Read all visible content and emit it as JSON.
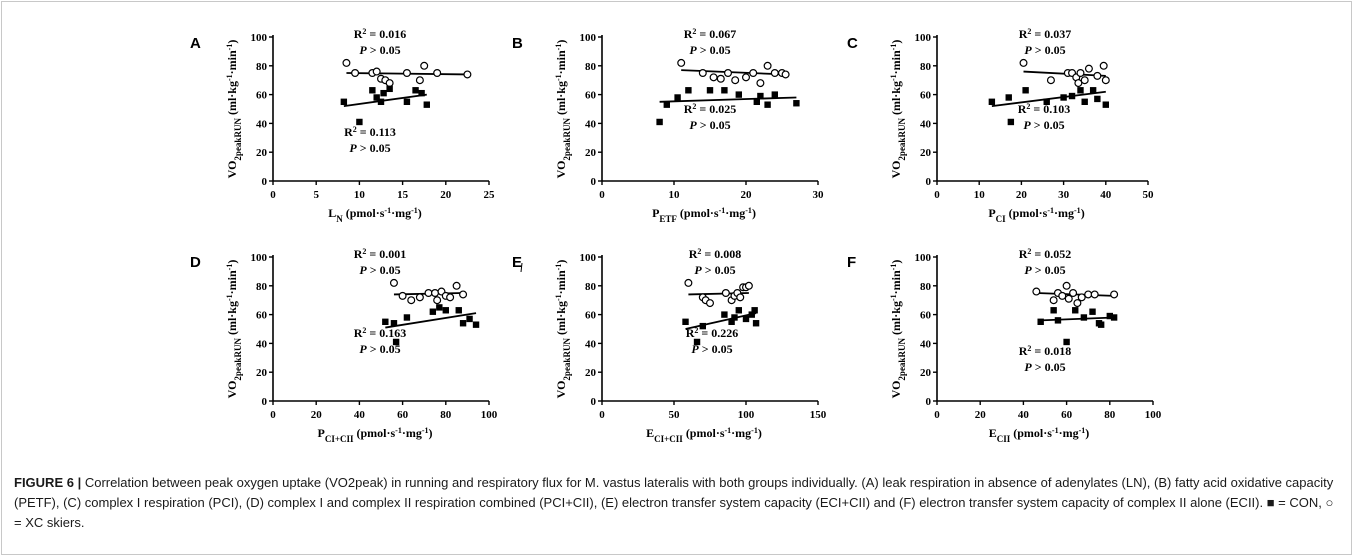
{
  "caption": {
    "figure_label": "FIGURE 6 |",
    "text": "Correlation between peak oxygen uptake (VO2peak) in running and respiratory flux for M. vastus lateralis with both groups individually. (A) leak respiration in absence of adenylates (LN), (B) fatty acid oxidative capacity (PETF), (C) complex I respiration (PCI), (D) complex I and complex II respiration combined (PCI+CII), (E) electron transfer system capacity (ECI+CII) and (F) electron transfer system capacity of complex II alone (ECII). ■ = CON, ○ = XC skiers."
  },
  "chart_data": [
    {
      "panel": "A",
      "type": "scatter",
      "xlabel": "LN (pmol·s-1·mg-1)",
      "xlabel_main": "L",
      "xlabel_sub": "N",
      "xlabel_rest": " (pmol·s-1·mg-1)",
      "ylabel": "VO2peakRUN (ml·kg-1·min-1)",
      "xlim": [
        0,
        25
      ],
      "xticks": [
        0,
        5,
        10,
        15,
        20,
        25
      ],
      "ylim": [
        0,
        100
      ],
      "yticks": [
        0,
        20,
        40,
        60,
        80,
        100
      ],
      "series": [
        {
          "name": "XC skiers",
          "marker": "circle",
          "points": [
            [
              8.5,
              82
            ],
            [
              9.5,
              75
            ],
            [
              11.5,
              75
            ],
            [
              12,
              76
            ],
            [
              12.5,
              71
            ],
            [
              13,
              70
            ],
            [
              13.5,
              68
            ],
            [
              15.5,
              75
            ],
            [
              17,
              70
            ],
            [
              17.5,
              80
            ],
            [
              19,
              75
            ],
            [
              22.5,
              74
            ]
          ],
          "fit": [
            [
              8.5,
              75
            ],
            [
              22.5,
              74
            ]
          ],
          "r2": "R2 = 0.016",
          "p": "P > 0.05"
        },
        {
          "name": "CON",
          "marker": "square",
          "points": [
            [
              8.2,
              55
            ],
            [
              10,
              41
            ],
            [
              11.5,
              63
            ],
            [
              12,
              58
            ],
            [
              12.5,
              55
            ],
            [
              12.8,
              61
            ],
            [
              13.5,
              64
            ],
            [
              15.5,
              55
            ],
            [
              16.5,
              63
            ],
            [
              17.2,
              61
            ],
            [
              17.8,
              53
            ]
          ],
          "fit": [
            [
              8.2,
              52
            ],
            [
              17.8,
              60
            ]
          ],
          "r2": "R2 = 0.113",
          "p": "P > 0.05"
        }
      ]
    },
    {
      "panel": "B",
      "type": "scatter",
      "xlabel": "PETF (pmol·s-1·mg-1)",
      "xlabel_main": "P",
      "xlabel_sub": "ETF",
      "xlabel_rest": " (pmol·s-1·mg-1)",
      "ylabel": "VO2peakRUN (ml·kg-1·min-1)",
      "xlim": [
        0,
        30
      ],
      "xticks": [
        0,
        10,
        20,
        30
      ],
      "ylim": [
        0,
        100
      ],
      "yticks": [
        0,
        20,
        40,
        60,
        80,
        100
      ],
      "series": [
        {
          "name": "XC skiers",
          "marker": "circle",
          "points": [
            [
              11,
              82
            ],
            [
              14,
              75
            ],
            [
              15.5,
              72
            ],
            [
              16.5,
              71
            ],
            [
              17.5,
              75
            ],
            [
              18.5,
              70
            ],
            [
              20,
              72
            ],
            [
              21,
              75
            ],
            [
              22,
              68
            ],
            [
              23,
              80
            ],
            [
              24,
              75
            ],
            [
              25,
              75
            ],
            [
              25.5,
              74
            ]
          ],
          "fit": [
            [
              11,
              77
            ],
            [
              25.5,
              74
            ]
          ],
          "r2": "R2 = 0.067",
          "p": "P > 0.05"
        },
        {
          "name": "CON",
          "marker": "square",
          "points": [
            [
              8,
              41
            ],
            [
              9,
              53
            ],
            [
              10.5,
              58
            ],
            [
              12,
              63
            ],
            [
              15,
              63
            ],
            [
              17,
              63
            ],
            [
              19,
              60
            ],
            [
              21.5,
              55
            ],
            [
              22,
              59
            ],
            [
              23,
              53
            ],
            [
              24,
              60
            ],
            [
              27,
              54
            ]
          ],
          "fit": [
            [
              8,
              55
            ],
            [
              27,
              58
            ]
          ],
          "r2": "R2 = 0.025",
          "p": "P > 0.05"
        }
      ]
    },
    {
      "panel": "C",
      "type": "scatter",
      "xlabel": "PCI (pmol·s-1·mg-1)",
      "xlabel_main": "P",
      "xlabel_sub": "CI",
      "xlabel_rest": " (pmol·s-1·mg-1)",
      "ylabel": "VO2peakRUN (ml·kg-1·min-1)",
      "xlim": [
        0,
        50
      ],
      "xticks": [
        0,
        10,
        20,
        30,
        40,
        50
      ],
      "ylim": [
        0,
        100
      ],
      "yticks": [
        0,
        20,
        40,
        60,
        80,
        100
      ],
      "series": [
        {
          "name": "XC skiers",
          "marker": "circle",
          "points": [
            [
              20.5,
              82
            ],
            [
              27,
              70
            ],
            [
              31,
              75
            ],
            [
              32,
              75
            ],
            [
              33,
              72
            ],
            [
              33.5,
              68
            ],
            [
              34,
              75
            ],
            [
              35,
              70
            ],
            [
              36,
              78
            ],
            [
              38,
              73
            ],
            [
              39.5,
              80
            ],
            [
              40,
              70
            ]
          ],
          "fit": [
            [
              20.5,
              76
            ],
            [
              40,
              73
            ]
          ],
          "r2": "R2 = 0.037",
          "p": "P > 0.05"
        },
        {
          "name": "CON",
          "marker": "square",
          "points": [
            [
              13,
              55
            ],
            [
              17,
              58
            ],
            [
              17.5,
              41
            ],
            [
              21,
              63
            ],
            [
              26,
              55
            ],
            [
              30,
              58
            ],
            [
              32,
              59
            ],
            [
              34,
              63
            ],
            [
              35,
              55
            ],
            [
              37,
              63
            ],
            [
              38,
              57
            ],
            [
              40,
              53
            ]
          ],
          "fit": [
            [
              13,
              52
            ],
            [
              40,
              62
            ]
          ],
          "r2": "R2 = 0.103",
          "p": "P > 0.05"
        }
      ]
    },
    {
      "panel": "D",
      "type": "scatter",
      "xlabel": "PCI+CII (pmol·s-1·mg-1)",
      "xlabel_main": "P",
      "xlabel_sub": "CI+CII",
      "xlabel_rest": " (pmol·s-1·mg-1)",
      "ylabel": "VO2peakRUN (ml·kg-1·min-1)",
      "xlim": [
        0,
        100
      ],
      "xticks": [
        0,
        20,
        40,
        60,
        80,
        100
      ],
      "ylim": [
        0,
        100
      ],
      "yticks": [
        0,
        20,
        40,
        60,
        80,
        100
      ],
      "series": [
        {
          "name": "XC skiers",
          "marker": "circle",
          "points": [
            [
              56,
              82
            ],
            [
              60,
              73
            ],
            [
              64,
              70
            ],
            [
              68,
              72
            ],
            [
              72,
              75
            ],
            [
              75,
              75
            ],
            [
              76,
              70
            ],
            [
              78,
              76
            ],
            [
              80,
              73
            ],
            [
              82,
              72
            ],
            [
              85,
              80
            ],
            [
              88,
              74
            ]
          ],
          "fit": [
            [
              56,
              74
            ],
            [
              88,
              75
            ]
          ],
          "r2": "R2 = 0.001",
          "p": "P > 0.05"
        },
        {
          "name": "CON",
          "marker": "square",
          "points": [
            [
              52,
              55
            ],
            [
              56,
              54
            ],
            [
              57,
              41
            ],
            [
              62,
              58
            ],
            [
              74,
              62
            ],
            [
              77,
              65
            ],
            [
              80,
              63
            ],
            [
              86,
              63
            ],
            [
              88,
              54
            ],
            [
              91,
              57
            ],
            [
              94,
              53
            ]
          ],
          "fit": [
            [
              52,
              51
            ],
            [
              94,
              61
            ]
          ],
          "r2": "R2 = 0.163",
          "p": "P > 0.05"
        }
      ]
    },
    {
      "panel": "E",
      "type": "scatter",
      "xlabel": "ECI+CII (pmol·s-1·mg-1)",
      "xlabel_main": "E",
      "xlabel_sub": "CI+CII",
      "xlabel_rest": " (pmol·s-1·mg-1)",
      "ylabel": "VO2peakRUN (ml·kg-1·min-1)",
      "xlim": [
        0,
        150
      ],
      "xticks": [
        0,
        50,
        100,
        150
      ],
      "ylim": [
        0,
        100
      ],
      "yticks": [
        0,
        20,
        40,
        60,
        80,
        100
      ],
      "series": [
        {
          "name": "XC skiers",
          "marker": "circle",
          "points": [
            [
              60,
              82
            ],
            [
              70,
              72
            ],
            [
              72,
              70
            ],
            [
              75,
              68
            ],
            [
              86,
              75
            ],
            [
              90,
              70
            ],
            [
              92,
              73
            ],
            [
              94,
              75
            ],
            [
              96,
              72
            ],
            [
              98,
              79
            ],
            [
              100,
              79
            ],
            [
              102,
              80
            ]
          ],
          "fit": [
            [
              60,
              74
            ],
            [
              102,
              75
            ]
          ],
          "r2": "R2 = 0.008",
          "p": "P > 0.05"
        },
        {
          "name": "CON",
          "marker": "square",
          "points": [
            [
              58,
              55
            ],
            [
              66,
              41
            ],
            [
              70,
              52
            ],
            [
              85,
              60
            ],
            [
              90,
              55
            ],
            [
              92,
              58
            ],
            [
              95,
              63
            ],
            [
              100,
              57
            ],
            [
              104,
              60
            ],
            [
              106,
              63
            ],
            [
              107,
              54
            ]
          ],
          "fit": [
            [
              58,
              50
            ],
            [
              107,
              61
            ]
          ],
          "r2": "R2 = 0.226",
          "p": "P > 0.05"
        }
      ]
    },
    {
      "panel": "F",
      "type": "scatter",
      "xlabel": "ECII (pmol·s-1·mg-1)",
      "xlabel_main": "E",
      "xlabel_sub": "CII",
      "xlabel_rest": " (pmol·s-1·mg-1)",
      "ylabel": "VO2peakRUN (ml·kg-1·min-1)",
      "xlim": [
        0,
        100
      ],
      "xticks": [
        0,
        20,
        40,
        60,
        80,
        100
      ],
      "ylim": [
        0,
        100
      ],
      "yticks": [
        0,
        20,
        40,
        60,
        80,
        100
      ],
      "series": [
        {
          "name": "XC skiers",
          "marker": "circle",
          "points": [
            [
              46,
              76
            ],
            [
              54,
              70
            ],
            [
              56,
              75
            ],
            [
              58,
              73
            ],
            [
              60,
              80
            ],
            [
              61,
              71
            ],
            [
              63,
              75
            ],
            [
              65,
              68
            ],
            [
              67,
              72
            ],
            [
              70,
              74
            ],
            [
              73,
              74
            ],
            [
              82,
              74
            ]
          ],
          "fit": [
            [
              46,
              75
            ],
            [
              82,
              73
            ]
          ],
          "r2": "R2 = 0.052",
          "p": "P > 0.05"
        },
        {
          "name": "CON",
          "marker": "square",
          "points": [
            [
              48,
              55
            ],
            [
              54,
              63
            ],
            [
              56,
              56
            ],
            [
              60,
              41
            ],
            [
              64,
              63
            ],
            [
              68,
              58
            ],
            [
              72,
              62
            ],
            [
              75,
              54
            ],
            [
              76,
              53
            ],
            [
              80,
              59
            ],
            [
              82,
              58
            ]
          ],
          "fit": [
            [
              48,
              56
            ],
            [
              82,
              58
            ]
          ],
          "r2": "R2 = 0.018",
          "p": "P > 0.05"
        }
      ]
    }
  ]
}
